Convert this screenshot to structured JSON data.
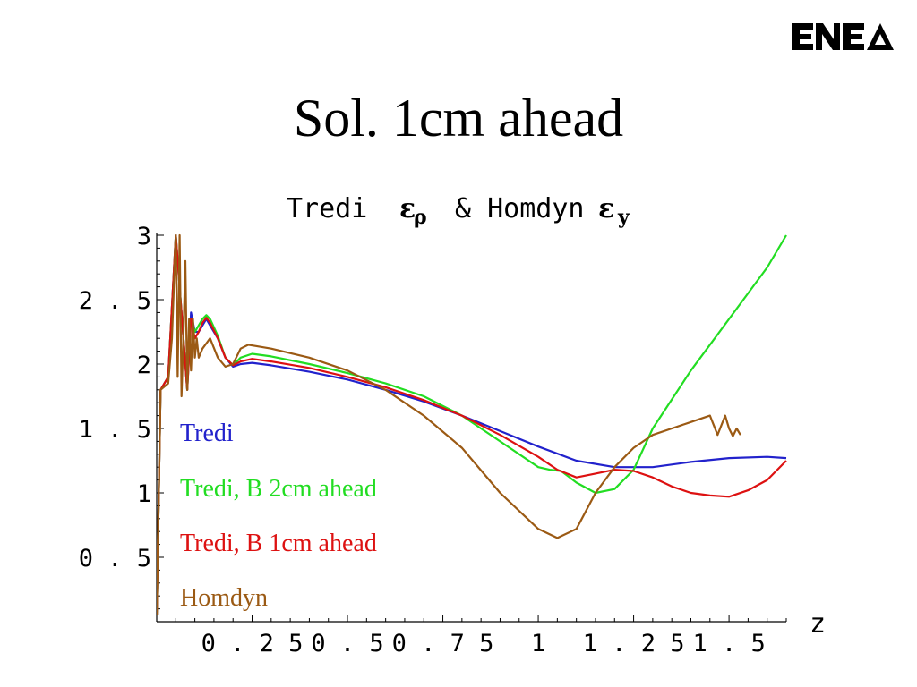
{
  "slide": {
    "title": "Sol. 1cm ahead",
    "logo_text": "ENEA"
  },
  "chart_data": {
    "type": "line",
    "title_parts": [
      "Tredi",
      "ε",
      "ρ",
      "& Homdyn",
      "ε",
      "y"
    ],
    "xlabel": "z",
    "ylabel": "",
    "xlim": [
      0,
      1.65
    ],
    "ylim": [
      0,
      3
    ],
    "xticks": [
      0.25,
      0.5,
      0.75,
      1,
      1.25,
      1.5
    ],
    "xtick_labels": [
      "0.25",
      "0.5",
      "0.75",
      "1",
      "1.25",
      "1.5"
    ],
    "yticks": [
      0.5,
      1,
      1.5,
      2,
      2.5,
      3
    ],
    "ytick_labels": [
      "0.5",
      "1",
      "1.5",
      "2",
      "2.5",
      "3"
    ],
    "legend_position": "inside-left",
    "series": [
      {
        "name": "Tredi",
        "color": "#2222cc",
        "x": [
          0.0,
          0.01,
          0.03,
          0.05,
          0.08,
          0.09,
          0.1,
          0.11,
          0.12,
          0.13,
          0.14,
          0.16,
          0.18,
          0.2,
          0.22,
          0.25,
          0.3,
          0.4,
          0.5,
          0.6,
          0.7,
          0.8,
          0.9,
          1.0,
          1.1,
          1.2,
          1.3,
          1.4,
          1.5,
          1.6,
          1.65
        ],
        "y": [
          0.05,
          1.8,
          1.9,
          3.0,
          1.8,
          2.4,
          2.25,
          2.25,
          2.3,
          2.35,
          2.3,
          2.2,
          2.05,
          1.98,
          2.0,
          2.01,
          1.99,
          1.94,
          1.88,
          1.8,
          1.71,
          1.6,
          1.48,
          1.36,
          1.25,
          1.2,
          1.2,
          1.24,
          1.27,
          1.28,
          1.27
        ]
      },
      {
        "name": "Tredi, B 2cm ahead",
        "color": "#22dd22",
        "x": [
          0.0,
          0.01,
          0.03,
          0.05,
          0.08,
          0.09,
          0.1,
          0.11,
          0.12,
          0.13,
          0.14,
          0.16,
          0.18,
          0.2,
          0.22,
          0.25,
          0.3,
          0.4,
          0.5,
          0.6,
          0.7,
          0.8,
          0.9,
          1.0,
          1.03,
          1.06,
          1.1,
          1.15,
          1.2,
          1.25,
          1.3,
          1.4,
          1.5,
          1.6,
          1.65
        ],
        "y": [
          0.05,
          1.8,
          1.9,
          3.0,
          1.8,
          2.35,
          2.25,
          2.3,
          2.35,
          2.38,
          2.35,
          2.22,
          2.05,
          1.99,
          2.05,
          2.08,
          2.06,
          2.0,
          1.93,
          1.85,
          1.75,
          1.6,
          1.4,
          1.2,
          1.18,
          1.17,
          1.08,
          1.0,
          1.03,
          1.18,
          1.5,
          1.95,
          2.35,
          2.75,
          3.0
        ]
      },
      {
        "name": "Tredi, B 1cm ahead",
        "color": "#dd1111",
        "x": [
          0.0,
          0.01,
          0.03,
          0.05,
          0.08,
          0.09,
          0.1,
          0.11,
          0.12,
          0.13,
          0.14,
          0.16,
          0.18,
          0.2,
          0.22,
          0.25,
          0.3,
          0.4,
          0.5,
          0.6,
          0.7,
          0.8,
          0.9,
          1.0,
          1.05,
          1.1,
          1.15,
          1.2,
          1.25,
          1.3,
          1.35,
          1.4,
          1.45,
          1.5,
          1.55,
          1.6,
          1.65
        ],
        "y": [
          0.05,
          1.8,
          1.9,
          3.0,
          1.8,
          2.35,
          2.2,
          2.25,
          2.32,
          2.36,
          2.32,
          2.2,
          2.05,
          1.99,
          2.02,
          2.04,
          2.02,
          1.97,
          1.9,
          1.82,
          1.72,
          1.6,
          1.45,
          1.28,
          1.18,
          1.12,
          1.15,
          1.18,
          1.17,
          1.12,
          1.05,
          1.0,
          0.98,
          0.97,
          1.02,
          1.1,
          1.25
        ]
      },
      {
        "name": "Homdyn",
        "color": "#9b5a14",
        "x": [
          0.0,
          0.01,
          0.03,
          0.04,
          0.05,
          0.055,
          0.06,
          0.065,
          0.07,
          0.075,
          0.08,
          0.085,
          0.09,
          0.095,
          0.1,
          0.105,
          0.11,
          0.12,
          0.14,
          0.16,
          0.18,
          0.2,
          0.22,
          0.24,
          0.26,
          0.3,
          0.4,
          0.5,
          0.6,
          0.7,
          0.8,
          0.9,
          1.0,
          1.05,
          1.1,
          1.15,
          1.2,
          1.25,
          1.3,
          1.35,
          1.4,
          1.45,
          1.47,
          1.49,
          1.5,
          1.51,
          1.52,
          1.53
        ],
        "y": [
          0.05,
          1.8,
          1.85,
          2.2,
          3.0,
          1.9,
          3.0,
          1.75,
          2.2,
          2.8,
          1.8,
          2.35,
          1.95,
          2.35,
          2.05,
          2.2,
          2.05,
          2.12,
          2.2,
          2.05,
          1.98,
          2.0,
          2.12,
          2.15,
          2.14,
          2.12,
          2.05,
          1.95,
          1.8,
          1.6,
          1.35,
          1.0,
          0.72,
          0.65,
          0.72,
          1.0,
          1.2,
          1.35,
          1.45,
          1.5,
          1.55,
          1.6,
          1.45,
          1.6,
          1.5,
          1.44,
          1.5,
          1.45
        ]
      }
    ]
  }
}
